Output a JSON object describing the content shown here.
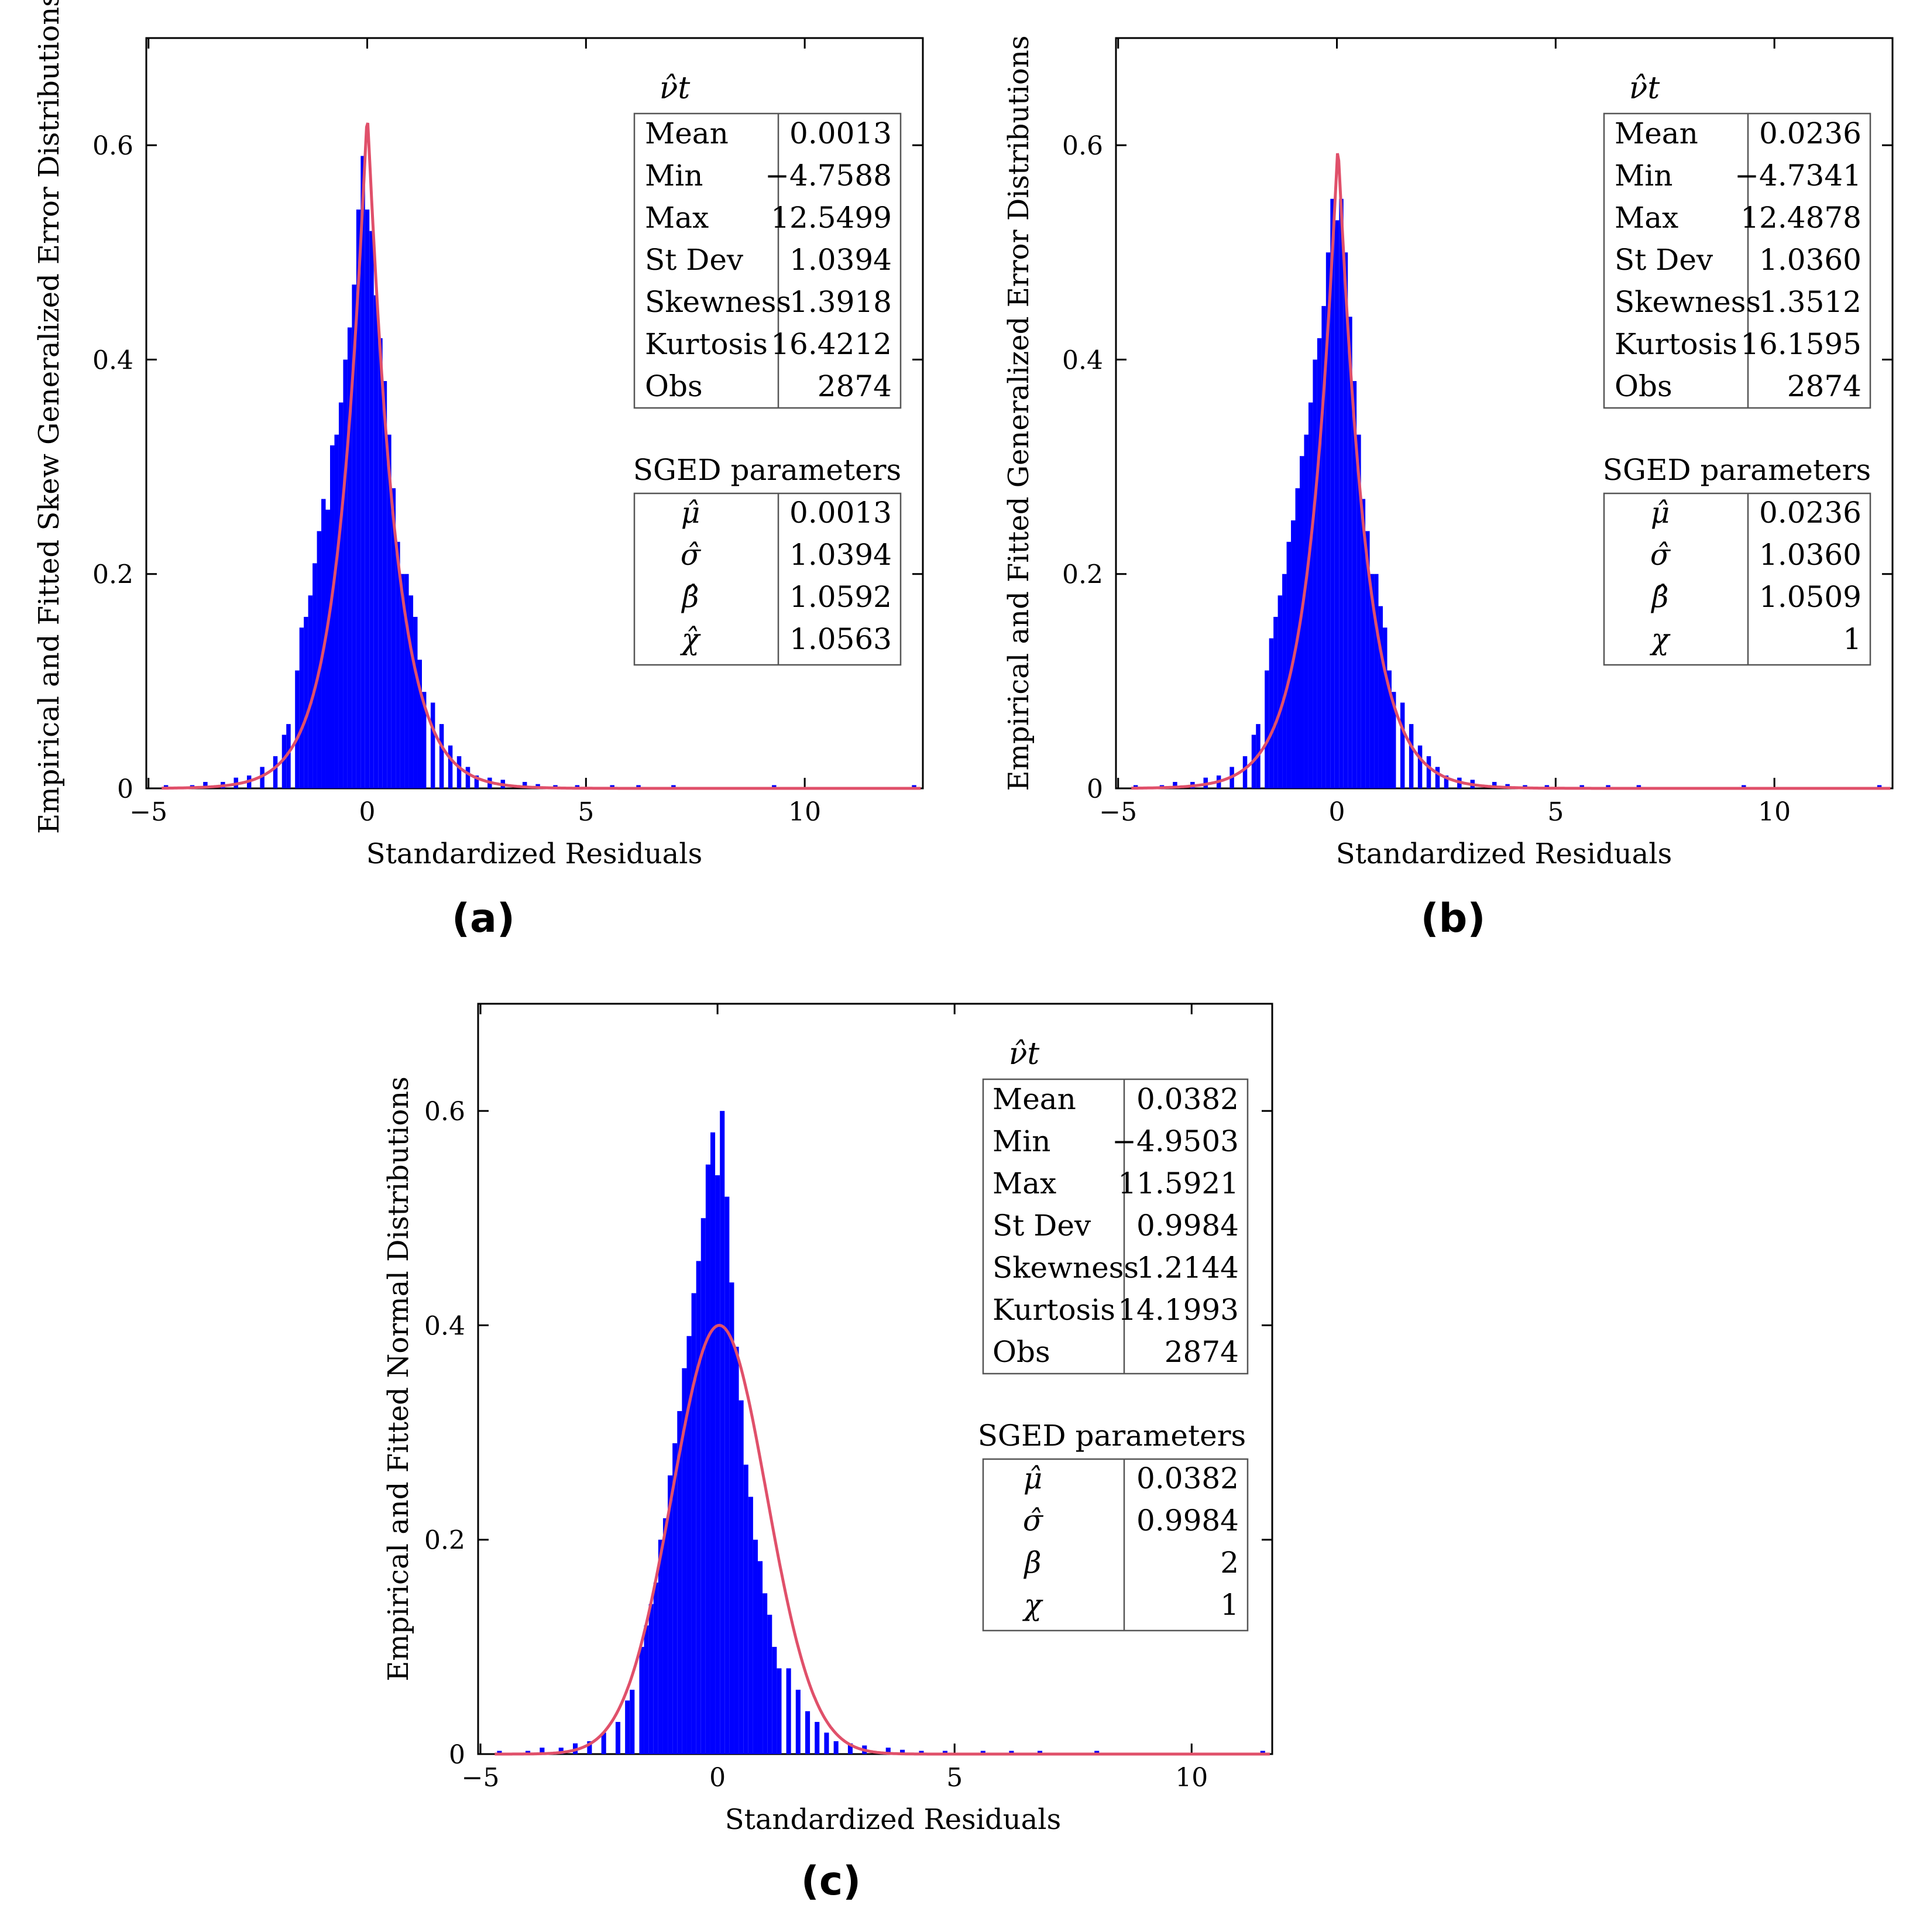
{
  "figure": {
    "panels": [
      {
        "id": "a",
        "panel_label": "(a)",
        "distribution": "sged",
        "stats_title": "ν̂t",
        "stats": [
          {
            "label": "Mean",
            "value": "0.0013"
          },
          {
            "label": "Min",
            "value": "−4.7588"
          },
          {
            "label": "Max",
            "value": "12.5499"
          },
          {
            "label": "St Dev",
            "value": "1.0394"
          },
          {
            "label": "Skewness",
            "value": "1.3918"
          },
          {
            "label": "Kurtosis",
            "value": "16.4212"
          },
          {
            "label": "Obs",
            "value": "2874"
          }
        ],
        "params_title": "SGED parameters",
        "params": [
          {
            "symbol": "μ̂",
            "value": "0.0013"
          },
          {
            "symbol": "σ̂",
            "value": "1.0394"
          },
          {
            "symbol": "β̂",
            "value": "1.0592"
          },
          {
            "symbol": "χ̂",
            "value": "1.0563"
          }
        ]
      },
      {
        "id": "b",
        "panel_label": "(b)",
        "distribution": "ged",
        "stats_title": "ν̂t",
        "stats": [
          {
            "label": "Mean",
            "value": "0.0236"
          },
          {
            "label": "Min",
            "value": "−4.7341"
          },
          {
            "label": "Max",
            "value": "12.4878"
          },
          {
            "label": "St Dev",
            "value": "1.0360"
          },
          {
            "label": "Skewness",
            "value": "1.3512"
          },
          {
            "label": "Kurtosis",
            "value": "16.1595"
          },
          {
            "label": "Obs",
            "value": "2874"
          }
        ],
        "params_title": "SGED parameters",
        "params": [
          {
            "symbol": "μ̂",
            "value": "0.0236"
          },
          {
            "symbol": "σ̂",
            "value": "1.0360"
          },
          {
            "symbol": "β̂",
            "value": "1.0509"
          },
          {
            "symbol": "χ",
            "value": "1"
          }
        ]
      },
      {
        "id": "c",
        "panel_label": "(c)",
        "distribution": "normal",
        "stats_title": "ν̂t",
        "stats": [
          {
            "label": "Mean",
            "value": "0.0382"
          },
          {
            "label": "Min",
            "value": "−4.9503"
          },
          {
            "label": "Max",
            "value": "11.5921"
          },
          {
            "label": "St Dev",
            "value": "0.9984"
          },
          {
            "label": "Skewness",
            "value": "1.2144"
          },
          {
            "label": "Kurtosis",
            "value": "14.1993"
          },
          {
            "label": "Obs",
            "value": "2874"
          }
        ],
        "params_title": "SGED parameters",
        "params": [
          {
            "symbol": "μ̂",
            "value": "0.0382"
          },
          {
            "symbol": "σ̂",
            "value": "0.9984"
          },
          {
            "symbol": "β",
            "value": "2"
          },
          {
            "symbol": "χ",
            "value": "1"
          }
        ]
      }
    ]
  },
  "chart_data": [
    {
      "type": "bar",
      "panel": "a",
      "title": "",
      "xlabel": "Standardized Residuals",
      "ylabel": "Empirical and Fitted Skew Generalized Error Distributions",
      "xlim": [
        -5.05,
        12.7
      ],
      "ylim": [
        0,
        0.7
      ],
      "xticks": [
        -5,
        0,
        5,
        10
      ],
      "xtick_labels": [
        "−5",
        "0",
        "5",
        "10"
      ],
      "yticks": [
        0,
        0.2,
        0.4,
        0.6
      ],
      "ytick_labels": [
        "0",
        "0.2",
        "0.4",
        "0.6"
      ],
      "histogram": {
        "bin_width": 0.1,
        "x": [
          -1.6,
          -1.5,
          -1.4,
          -1.3,
          -1.2,
          -1.1,
          -1.0,
          -0.9,
          -0.8,
          -0.7,
          -0.6,
          -0.5,
          -0.4,
          -0.3,
          -0.2,
          -0.1,
          0.0,
          0.1,
          0.2,
          0.3,
          0.4,
          0.5,
          0.6,
          0.7,
          0.8,
          0.9,
          1.0,
          1.1,
          1.2,
          1.3
        ],
        "y": [
          0.11,
          0.15,
          0.16,
          0.18,
          0.21,
          0.24,
          0.27,
          0.26,
          0.32,
          0.33,
          0.36,
          0.4,
          0.43,
          0.47,
          0.54,
          0.59,
          0.54,
          0.52,
          0.46,
          0.42,
          0.38,
          0.33,
          0.28,
          0.23,
          0.2,
          0.2,
          0.18,
          0.16,
          0.12,
          0.09
        ],
        "sparse_x": [
          -4.6,
          -4.0,
          -3.7,
          -3.3,
          -3.0,
          -2.7,
          -2.4,
          -2.1,
          -1.9,
          -1.8,
          1.5,
          1.7,
          1.9,
          2.1,
          2.3,
          2.5,
          2.8,
          3.1,
          3.6,
          3.9,
          4.3,
          4.8,
          5.6,
          6.2,
          7.0,
          9.3,
          12.5
        ],
        "sparse_y": [
          0.003,
          0.003,
          0.006,
          0.006,
          0.01,
          0.012,
          0.02,
          0.03,
          0.05,
          0.06,
          0.08,
          0.06,
          0.04,
          0.03,
          0.02,
          0.012,
          0.01,
          0.008,
          0.006,
          0.004,
          0.003,
          0.003,
          0.003,
          0.003,
          0.003,
          0.003,
          0.003
        ]
      },
      "fit": {
        "name": "SGED fit",
        "mu": 0.0013,
        "sigma": 1.0394,
        "beta": 1.0592,
        "chi": 1.0563,
        "peak": 0.63
      }
    },
    {
      "type": "bar",
      "panel": "b",
      "title": "",
      "xlabel": "Standardized Residuals",
      "ylabel": "Empirical and Fitted Generalized Error Distributions",
      "xlim": [
        -5.05,
        12.7
      ],
      "ylim": [
        0,
        0.7
      ],
      "xticks": [
        -5,
        0,
        5,
        10
      ],
      "xtick_labels": [
        "−5",
        "0",
        "5",
        "10"
      ],
      "yticks": [
        0,
        0.2,
        0.4,
        0.6
      ],
      "ytick_labels": [
        "0",
        "0.2",
        "0.4",
        "0.6"
      ],
      "histogram": {
        "bin_width": 0.1,
        "x": [
          -1.6,
          -1.5,
          -1.4,
          -1.3,
          -1.2,
          -1.1,
          -1.0,
          -0.9,
          -0.8,
          -0.7,
          -0.6,
          -0.5,
          -0.4,
          -0.3,
          -0.2,
          -0.1,
          0.0,
          0.1,
          0.2,
          0.3,
          0.4,
          0.5,
          0.6,
          0.7,
          0.8,
          0.9,
          1.0,
          1.1,
          1.2,
          1.3
        ],
        "y": [
          0.11,
          0.14,
          0.16,
          0.18,
          0.2,
          0.23,
          0.25,
          0.28,
          0.31,
          0.33,
          0.36,
          0.4,
          0.42,
          0.45,
          0.5,
          0.55,
          0.53,
          0.55,
          0.5,
          0.44,
          0.38,
          0.33,
          0.27,
          0.24,
          0.2,
          0.2,
          0.17,
          0.15,
          0.11,
          0.09
        ],
        "sparse_x": [
          -4.6,
          -4.0,
          -3.7,
          -3.3,
          -3.0,
          -2.7,
          -2.4,
          -2.1,
          -1.9,
          -1.8,
          1.5,
          1.7,
          1.9,
          2.1,
          2.3,
          2.5,
          2.8,
          3.1,
          3.6,
          3.9,
          4.3,
          4.8,
          5.6,
          6.2,
          6.9,
          9.3,
          12.4
        ],
        "sparse_y": [
          0.003,
          0.003,
          0.006,
          0.006,
          0.01,
          0.012,
          0.02,
          0.03,
          0.05,
          0.06,
          0.08,
          0.06,
          0.04,
          0.03,
          0.02,
          0.012,
          0.01,
          0.008,
          0.006,
          0.004,
          0.003,
          0.003,
          0.003,
          0.003,
          0.003,
          0.003,
          0.003
        ]
      },
      "fit": {
        "name": "GED fit",
        "mu": 0.0236,
        "sigma": 1.036,
        "beta": 1.0509,
        "chi": 1,
        "peak": 0.6
      }
    },
    {
      "type": "bar",
      "panel": "c",
      "title": "",
      "xlabel": "Standardized Residuals",
      "ylabel": "Empirical and Fitted Normal Distributions",
      "xlim": [
        -5.05,
        11.7
      ],
      "ylim": [
        0,
        0.7
      ],
      "xticks": [
        -5,
        0,
        5,
        10
      ],
      "xtick_labels": [
        "−5",
        "0",
        "5",
        "10"
      ],
      "yticks": [
        0,
        0.2,
        0.4,
        0.6
      ],
      "ytick_labels": [
        "0",
        "0.2",
        "0.4",
        "0.6"
      ],
      "histogram": {
        "bin_width": 0.1,
        "x": [
          -1.6,
          -1.5,
          -1.4,
          -1.3,
          -1.2,
          -1.1,
          -1.0,
          -0.9,
          -0.8,
          -0.7,
          -0.6,
          -0.5,
          -0.4,
          -0.3,
          -0.2,
          -0.1,
          0.0,
          0.1,
          0.2,
          0.3,
          0.4,
          0.5,
          0.6,
          0.7,
          0.8,
          0.9,
          1.0,
          1.1,
          1.2,
          1.3
        ],
        "y": [
          0.1,
          0.12,
          0.14,
          0.16,
          0.2,
          0.22,
          0.26,
          0.29,
          0.32,
          0.36,
          0.39,
          0.43,
          0.46,
          0.5,
          0.55,
          0.58,
          0.54,
          0.6,
          0.52,
          0.44,
          0.38,
          0.33,
          0.27,
          0.24,
          0.2,
          0.18,
          0.15,
          0.13,
          0.1,
          0.08
        ],
        "sparse_x": [
          -4.6,
          -4.0,
          -3.7,
          -3.3,
          -3.0,
          -2.7,
          -2.4,
          -2.1,
          -1.9,
          -1.8,
          1.5,
          1.7,
          1.9,
          2.1,
          2.3,
          2.5,
          2.8,
          3.1,
          3.6,
          3.9,
          4.3,
          4.8,
          5.6,
          6.2,
          6.8,
          8.0,
          11.5
        ],
        "sparse_y": [
          0.003,
          0.003,
          0.006,
          0.006,
          0.01,
          0.012,
          0.02,
          0.03,
          0.05,
          0.06,
          0.08,
          0.06,
          0.04,
          0.03,
          0.02,
          0.012,
          0.01,
          0.008,
          0.006,
          0.004,
          0.003,
          0.003,
          0.003,
          0.003,
          0.003,
          0.003,
          0.003
        ]
      },
      "fit": {
        "name": "Normal fit",
        "mu": 0.0382,
        "sigma": 0.9984,
        "beta": 2,
        "chi": 1,
        "peak": 0.4
      }
    }
  ]
}
